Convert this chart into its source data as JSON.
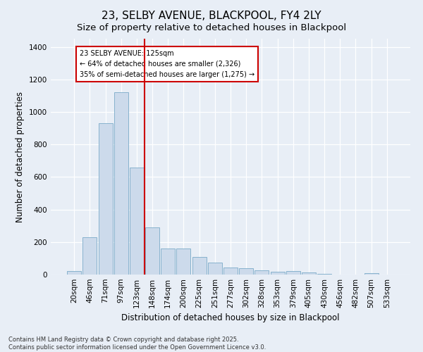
{
  "title": "23, SELBY AVENUE, BLACKPOOL, FY4 2LY",
  "subtitle": "Size of property relative to detached houses in Blackpool",
  "xlabel": "Distribution of detached houses by size in Blackpool",
  "ylabel": "Number of detached properties",
  "footnote": "Contains HM Land Registry data © Crown copyright and database right 2025.\nContains public sector information licensed under the Open Government Licence v3.0.",
  "categories": [
    "20sqm",
    "46sqm",
    "71sqm",
    "97sqm",
    "123sqm",
    "148sqm",
    "174sqm",
    "200sqm",
    "225sqm",
    "251sqm",
    "277sqm",
    "302sqm",
    "328sqm",
    "353sqm",
    "379sqm",
    "405sqm",
    "430sqm",
    "456sqm",
    "482sqm",
    "507sqm",
    "533sqm"
  ],
  "values": [
    20,
    230,
    930,
    1120,
    660,
    290,
    160,
    160,
    110,
    75,
    42,
    40,
    26,
    16,
    22,
    13,
    5,
    0,
    0,
    8,
    0
  ],
  "bar_color": "#ccdaeb",
  "bar_edge_color": "#7aaac8",
  "vline_color": "#cc0000",
  "vline_pos": 4.5,
  "annotation_text": "23 SELBY AVENUE: 125sqm\n← 64% of detached houses are smaller (2,326)\n35% of semi-detached houses are larger (1,275) →",
  "ylim": [
    0,
    1450
  ],
  "yticks": [
    0,
    200,
    400,
    600,
    800,
    1000,
    1200,
    1400
  ],
  "bg_color": "#e8eef6",
  "title_fontsize": 11,
  "subtitle_fontsize": 9.5,
  "axis_label_fontsize": 8.5,
  "tick_fontsize": 7.5,
  "footnote_fontsize": 6
}
